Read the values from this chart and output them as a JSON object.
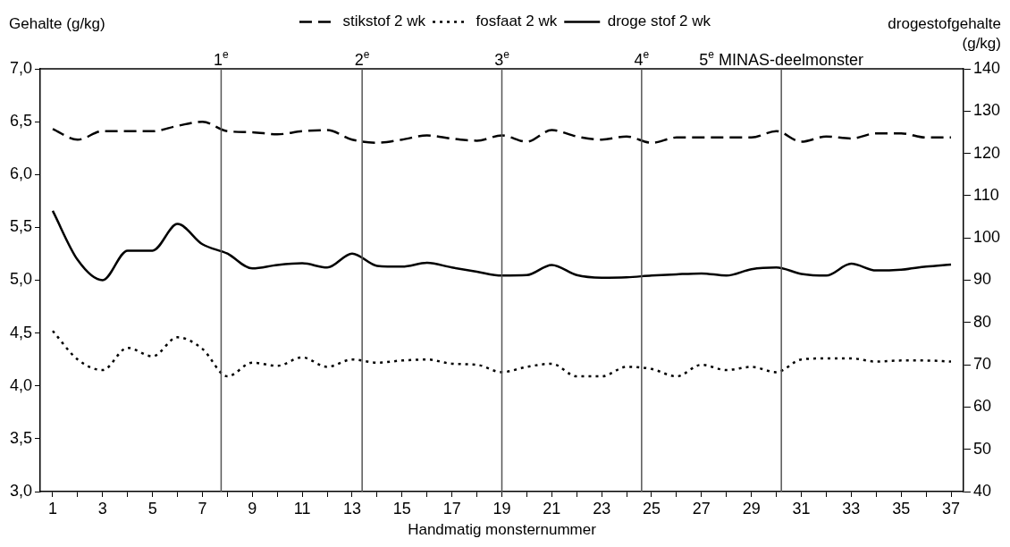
{
  "chart_data": {
    "type": "line",
    "ylabel": "Gehalte (g/kg)",
    "y2label": "drogestofgehalte (g/kg)",
    "xlabel": "Handmatig monsternummer",
    "x": [
      1,
      2,
      3,
      4,
      5,
      6,
      7,
      8,
      9,
      10,
      11,
      12,
      13,
      14,
      15,
      16,
      17,
      18,
      19,
      20,
      21,
      22,
      23,
      24,
      25,
      26,
      27,
      28,
      29,
      30,
      31,
      32,
      33,
      34,
      35,
      36,
      37
    ],
    "xlim": [
      0.5,
      37.5
    ],
    "xticks": [
      1,
      {
        "value": 2,
        "label": null
      },
      3,
      {
        "value": 4,
        "label": null
      },
      5,
      {
        "value": 6,
        "label": null
      },
      7,
      {
        "value": 8,
        "label": null
      },
      9,
      {
        "value": 10,
        "label": null
      },
      11,
      {
        "value": 12,
        "label": null
      },
      13,
      {
        "value": 14,
        "label": null
      },
      15,
      {
        "value": 16,
        "label": null
      },
      17,
      {
        "value": 18,
        "label": null
      },
      19,
      {
        "value": 20,
        "label": null
      },
      21,
      {
        "value": 22,
        "label": null
      },
      23,
      {
        "value": 24,
        "label": null
      },
      25,
      {
        "value": 26,
        "label": null
      },
      27,
      {
        "value": 28,
        "label": null
      },
      29,
      {
        "value": 30,
        "label": null
      },
      31,
      {
        "value": 32,
        "label": null
      },
      33,
      {
        "value": 34,
        "label": null
      },
      35,
      {
        "value": 36,
        "label": null
      },
      37
    ],
    "ylim": [
      3.0,
      7.0
    ],
    "yticks": [
      {
        "value": 3,
        "label": "3,0"
      },
      {
        "value": 3.5,
        "label": "3,5"
      },
      {
        "value": 4,
        "label": "4,0"
      },
      {
        "value": 4.5,
        "label": "4,5"
      },
      {
        "value": 5,
        "label": "5,0"
      },
      {
        "value": 5.5,
        "label": "5,5"
      },
      {
        "value": 6,
        "label": "6,0"
      },
      {
        "value": 6.5,
        "label": "6,5"
      },
      {
        "value": 7,
        "label": "7,0"
      }
    ],
    "y2lim": [
      40,
      140
    ],
    "y2ticks": [
      40,
      50,
      60,
      70,
      80,
      90,
      100,
      110,
      120,
      130,
      140
    ],
    "grid": false,
    "legend": "top",
    "series": [
      {
        "name": "stikstof 2 wk",
        "color": "#000000",
        "line_style": "dashed",
        "values": [
          6.43,
          6.33,
          6.41,
          6.41,
          6.41,
          6.46,
          6.5,
          6.41,
          6.4,
          6.38,
          6.41,
          6.42,
          6.33,
          6.3,
          6.33,
          6.37,
          6.34,
          6.32,
          6.37,
          6.31,
          6.42,
          6.36,
          6.33,
          6.36,
          6.3,
          6.35,
          6.35,
          6.35,
          6.35,
          6.41,
          6.31,
          6.36,
          6.34,
          6.39,
          6.39,
          6.35,
          6.35
        ]
      },
      {
        "name": "fosfaat 2 wk",
        "color": "#000000",
        "line_style": "dotted",
        "values": [
          4.52,
          4.25,
          4.15,
          4.36,
          4.28,
          4.46,
          4.35,
          4.09,
          4.22,
          4.19,
          4.27,
          4.18,
          4.25,
          4.22,
          4.24,
          4.25,
          4.21,
          4.2,
          4.13,
          4.18,
          4.21,
          4.09,
          4.09,
          4.18,
          4.16,
          4.09,
          4.2,
          4.15,
          4.18,
          4.13,
          4.25,
          4.26,
          4.26,
          4.23,
          4.24,
          4.24,
          4.23
        ]
      },
      {
        "name": "droge stof 2 wk",
        "color": "#000000",
        "line_style": "solid",
        "axis": "y2",
        "values": [
          106.4,
          94.8,
          90.0,
          97.0,
          97.0,
          103.3,
          98.5,
          96.3,
          92.8,
          93.6,
          94.0,
          93.0,
          96.3,
          93.4,
          93.2,
          94.1,
          93.0,
          92.0,
          91.1,
          91.2,
          93.6,
          91.2,
          90.6,
          90.7,
          91.1,
          91.4,
          91.6,
          91.1,
          92.6,
          93.0,
          91.5,
          91.1,
          93.9,
          92.3,
          92.5,
          93.2,
          93.7
        ]
      }
    ],
    "ref_lines": [
      {
        "axis": "x",
        "value": 7.75,
        "label": "1$^{e}$",
        "color": "#555555"
      },
      {
        "axis": "x",
        "value": 13.4,
        "label": "2$^{e}$",
        "color": "#555555"
      },
      {
        "axis": "x",
        "value": 19.0,
        "label": "3$^{e}$",
        "color": "#555555"
      },
      {
        "axis": "x",
        "value": 24.6,
        "label": "4$^{e}$",
        "color": "#555555"
      },
      {
        "axis": "x",
        "value": 30.2,
        "label": "5$^{e}$ MINAS-deelmonster",
        "color": "#555555"
      }
    ]
  }
}
